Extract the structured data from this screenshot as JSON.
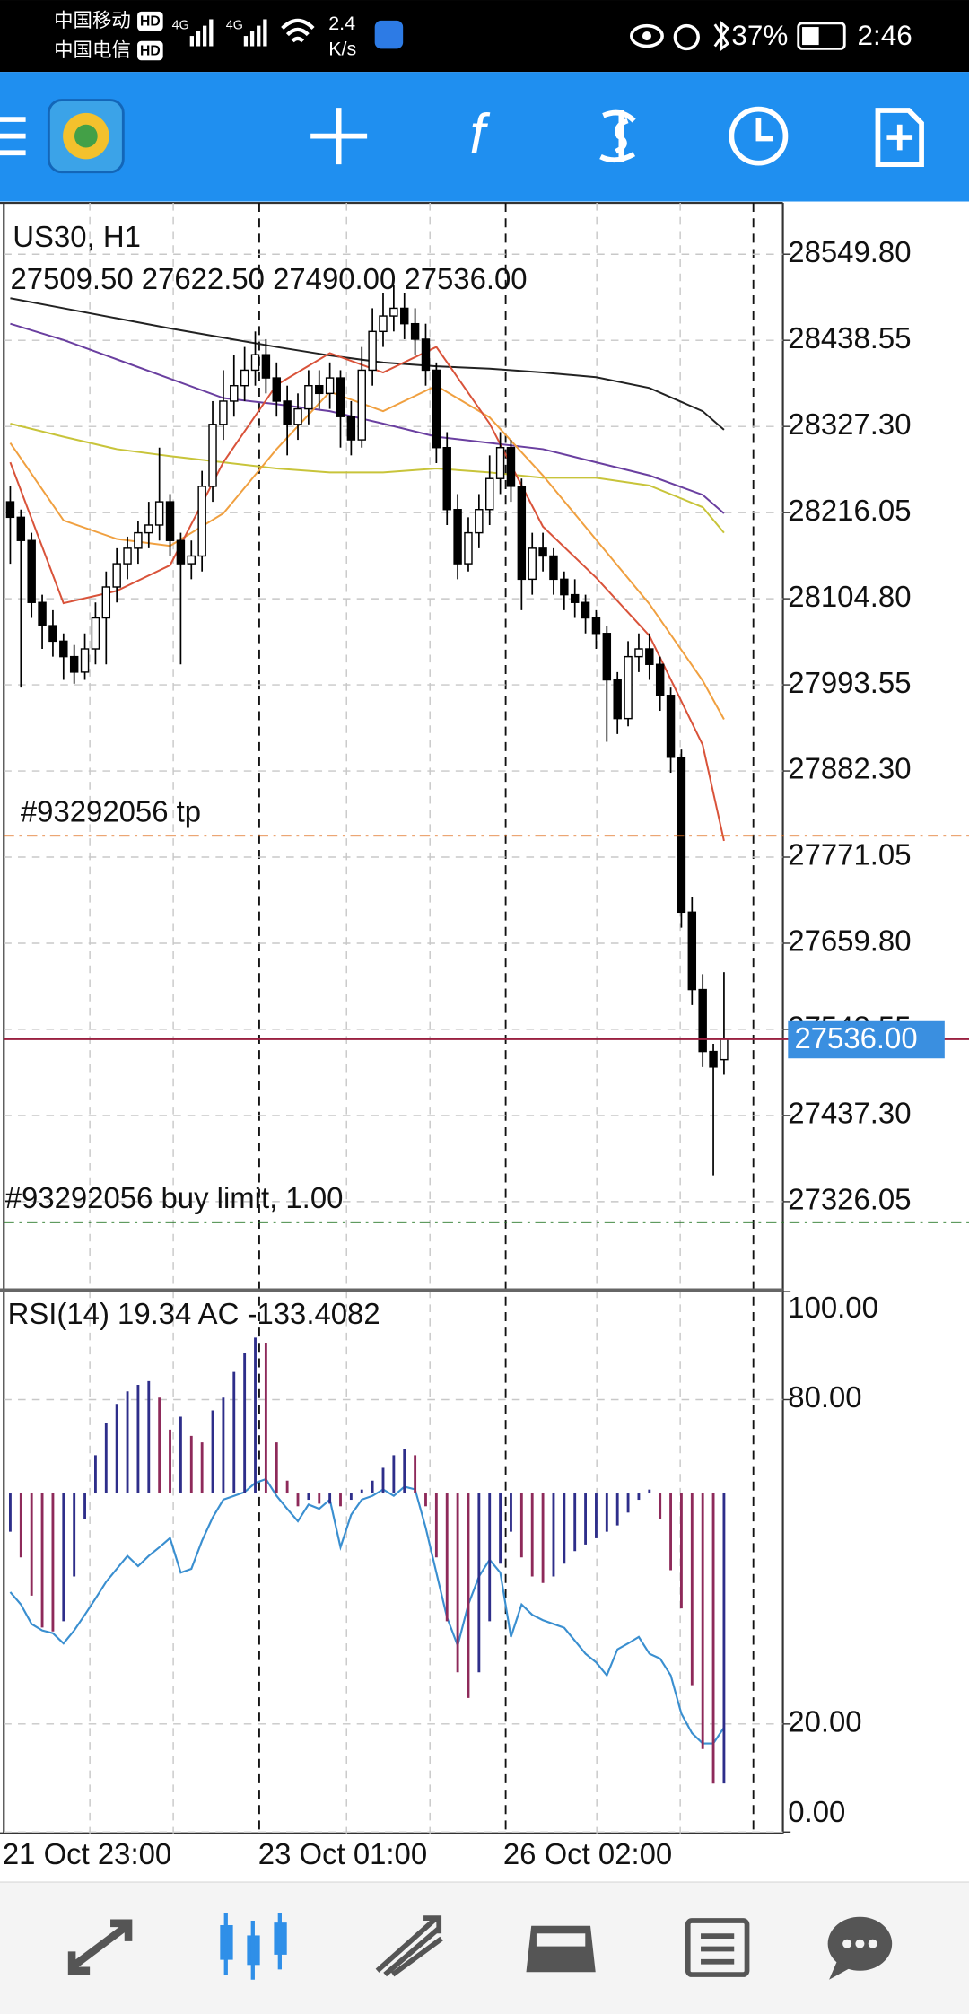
{
  "status_bar": {
    "carrier1": "中国移动",
    "carrier2": "中国电信",
    "hd": "HD",
    "net": "4G",
    "speed": "2.4",
    "speed_unit": "K/s",
    "battery": "37%",
    "time": "2:46"
  },
  "toolbar": {
    "indicators_icon": "f"
  },
  "chart_data": [
    {
      "type": "candlestick",
      "title": "US30, H1",
      "ohlc_text": "27509.50 27622.50 27490.00 27536.00",
      "candles": [
        [
          28230,
          28250,
          28150,
          28210
        ],
        [
          28210,
          28220,
          27990,
          28180
        ],
        [
          28180,
          28190,
          28080,
          28100
        ],
        [
          28100,
          28110,
          28040,
          28070
        ],
        [
          28070,
          28090,
          28030,
          28050
        ],
        [
          28050,
          28060,
          28000,
          28030
        ],
        [
          28030,
          28045,
          27995,
          28010
        ],
        [
          28010,
          28060,
          28000,
          28040
        ],
        [
          28040,
          28100,
          28020,
          28080
        ],
        [
          28080,
          28140,
          28020,
          28120
        ],
        [
          28120,
          28170,
          28100,
          28150
        ],
        [
          28150,
          28185,
          28130,
          28170
        ],
        [
          28170,
          28205,
          28150,
          28190
        ],
        [
          28190,
          28230,
          28170,
          28200
        ],
        [
          28200,
          28300,
          28180,
          28230
        ],
        [
          28230,
          28240,
          28160,
          28180
        ],
        [
          28180,
          28190,
          28020,
          28150
        ],
        [
          28150,
          28180,
          28130,
          28160
        ],
        [
          28160,
          28270,
          28140,
          28250
        ],
        [
          28250,
          28360,
          28230,
          28330
        ],
        [
          28330,
          28400,
          28310,
          28360
        ],
        [
          28360,
          28420,
          28340,
          28380
        ],
        [
          28380,
          28430,
          28360,
          28400
        ],
        [
          28400,
          28450,
          28380,
          28420
        ],
        [
          28420,
          28440,
          28370,
          28390
        ],
        [
          28390,
          28410,
          28340,
          28360
        ],
        [
          28360,
          28380,
          28290,
          28330
        ],
        [
          28330,
          28370,
          28310,
          28350
        ],
        [
          28350,
          28400,
          28330,
          28380
        ],
        [
          28380,
          28400,
          28350,
          28370
        ],
        [
          28370,
          28410,
          28350,
          28390
        ],
        [
          28390,
          28400,
          28300,
          28340
        ],
        [
          28340,
          28360,
          28290,
          28310
        ],
        [
          28310,
          28430,
          28300,
          28400
        ],
        [
          28400,
          28480,
          28380,
          28450
        ],
        [
          28450,
          28500,
          28430,
          28470
        ],
        [
          28470,
          28510,
          28450,
          28480
        ],
        [
          28480,
          28500,
          28440,
          28460
        ],
        [
          28460,
          28480,
          28420,
          28440
        ],
        [
          28440,
          28460,
          28380,
          28400
        ],
        [
          28400,
          28410,
          28280,
          28300
        ],
        [
          28300,
          28320,
          28200,
          28220
        ],
        [
          28220,
          28240,
          28130,
          28150
        ],
        [
          28150,
          28210,
          28140,
          28190
        ],
        [
          28190,
          28240,
          28170,
          28220
        ],
        [
          28220,
          28290,
          28200,
          28260
        ],
        [
          28260,
          28320,
          28240,
          28300
        ],
        [
          28300,
          28310,
          28230,
          28250
        ],
        [
          28250,
          28260,
          28090,
          28130
        ],
        [
          28130,
          28190,
          28110,
          28170
        ],
        [
          28170,
          28190,
          28140,
          28160
        ],
        [
          28160,
          28170,
          28110,
          28130
        ],
        [
          28130,
          28140,
          28090,
          28110
        ],
        [
          28110,
          28130,
          28080,
          28100
        ],
        [
          28100,
          28110,
          28060,
          28080
        ],
        [
          28080,
          28090,
          28040,
          28060
        ],
        [
          28060,
          28070,
          27920,
          28000
        ],
        [
          28000,
          28010,
          27930,
          27950
        ],
        [
          27950,
          28050,
          27940,
          28030
        ],
        [
          28030,
          28060,
          28010,
          28040
        ],
        [
          28040,
          28060,
          28000,
          28020
        ],
        [
          28020,
          28030,
          27960,
          27980
        ],
        [
          27980,
          27990,
          27880,
          27900
        ],
        [
          27900,
          27910,
          27680,
          27700
        ],
        [
          27700,
          27720,
          27580,
          27600
        ],
        [
          27600,
          27620,
          27500,
          27520
        ],
        [
          27520,
          27530,
          27360,
          27500
        ],
        [
          27509.5,
          27622.5,
          27490,
          27536
        ]
      ],
      "bull_color": "#ffffff",
      "bear_color": "#000000",
      "x": [
        0,
        5,
        10,
        15,
        20,
        25,
        30,
        35,
        40,
        45,
        50,
        55,
        60,
        65,
        67
      ],
      "series": [
        {
          "color": "#222222",
          "values": [
            28493,
            28480,
            28467,
            28454,
            28442,
            28430,
            28419,
            28410,
            28405,
            28402,
            28397,
            28391,
            28377,
            28347,
            28323
          ]
        },
        {
          "color": "#6a3fa0",
          "values": [
            28460,
            28439,
            28414,
            28389,
            28364,
            28356,
            28347,
            28331,
            28314,
            28306,
            28298,
            28281,
            28264,
            28239,
            28215
          ]
        },
        {
          "color": "#c8c43a",
          "values": [
            28331,
            28314,
            28298,
            28289,
            28281,
            28273,
            28268,
            28268,
            28273,
            28268,
            28261,
            28261,
            28251,
            28223,
            28190
          ]
        },
        {
          "color": "#f0a040",
          "values": [
            28306,
            28206,
            28182,
            28173,
            28215,
            28298,
            28372,
            28347,
            28380,
            28339,
            28264,
            28181,
            28098,
            27999,
            27949
          ]
        },
        {
          "color": "#d9533a",
          "values": [
            28281,
            28099,
            28115,
            28148,
            28281,
            28381,
            28422,
            28397,
            28430,
            28331,
            28198,
            28132,
            28057,
            27916,
            27792
          ]
        }
      ],
      "lines": [
        {
          "label": "#93292056 tp",
          "value": 27798.6,
          "color": "#e07020"
        },
        {
          "label": "#93292056 buy limit, 1.00",
          "value": 27299.5,
          "color": "#2a7a2a"
        }
      ],
      "bid": {
        "value": 27536,
        "label": "27536.00"
      },
      "ylim": [
        27211.6,
        28616.1
      ],
      "yticks": [
        {
          "value": 28549.8,
          "label": "28549.80"
        },
        {
          "value": 28438.55,
          "label": "28438.55"
        },
        {
          "value": 28327.3,
          "label": "28327.30"
        },
        {
          "value": 28216.05,
          "label": "28216.05"
        },
        {
          "value": 28104.8,
          "label": "28104.80"
        },
        {
          "value": 27993.55,
          "label": "27993.55"
        },
        {
          "value": 27882.3,
          "label": "27882.30"
        },
        {
          "value": 27771.05,
          "label": "27771.05"
        },
        {
          "value": 27659.8,
          "label": "27659.80"
        },
        {
          "value": 27548.55,
          "label": "27548.55"
        },
        {
          "value": 27437.3,
          "label": "27437.30"
        },
        {
          "value": 27326.05,
          "label": "27326.05"
        }
      ],
      "xticks": [
        {
          "value": 0,
          "label": "21 Oct 23:00"
        },
        {
          "value": 24,
          "label": "23 Oct 01:00"
        },
        {
          "value": 47,
          "label": "26 Oct 02:00"
        }
      ],
      "grid": true
    },
    {
      "type": "oscillator",
      "title": "RSI(14) 19.34 AC -133.4082",
      "series": [
        {
          "color": "#3a8fd0",
          "values": [
            44.4,
            42.1,
            38.5,
            37.3,
            36.8,
            34.9,
            37.3,
            40.2,
            43.2,
            46.3,
            48.7,
            51.1,
            49.2,
            51.1,
            52.7,
            54.4,
            48.0,
            48.7,
            53.9,
            58.2,
            61.5,
            62.2,
            62.9,
            64.6,
            65.3,
            62.2,
            59.8,
            57.5,
            60.6,
            59.8,
            61.5,
            52.7,
            58.7,
            61.5,
            62.2,
            63.4,
            62.2,
            63.9,
            63.4,
            56.3,
            48.0,
            39.7,
            34.5,
            42.1,
            47.3,
            50.4,
            48.0,
            36.1,
            42.1,
            40.2,
            39.2,
            38.5,
            37.8,
            35.4,
            33.0,
            31.4,
            29.0,
            33.8,
            34.9,
            36.1,
            33.0,
            32.1,
            29.0,
            21.9,
            18.3,
            16.4,
            16.4,
            19.34
          ]
        },
        {
          "type": "bar",
          "axis": "y2",
          "up_color": "#2e2e8a",
          "down_color": "#8e2a5a",
          "values": [
            -17.6,
            -29.4,
            -47,
            -61.7,
            -63.5,
            -58.8,
            -38.2,
            -11.8,
            17.6,
            32.3,
            41.2,
            47,
            50,
            51.7,
            44.1,
            29.4,
            35.3,
            26.5,
            23.5,
            38.2,
            44.1,
            55.9,
            64.7,
            71.7,
            69.4,
            23.5,
            5.9,
            -5.9,
            -2.9,
            -4.7,
            -4.7,
            -5.9,
            -2.9,
            1.8,
            5.9,
            11.8,
            17.6,
            20.6,
            17.6,
            -5.9,
            -29.4,
            -58.8,
            -82.3,
            -94.1,
            -82.3,
            -58.8,
            -32.3,
            -17.6,
            -29.4,
            -38.2,
            -41.2,
            -38.2,
            -32.3,
            -26.5,
            -23.5,
            -20.6,
            -17.6,
            -14.7,
            -8.8,
            -2.9,
            1.8,
            -11.8,
            -35.3,
            -52.9,
            -88.2,
            -117.6,
            -133.5,
            -133.4082
          ]
        }
      ],
      "ylim": [
        0,
        100
      ],
      "yticks": [
        {
          "value": 0,
          "label": "0.00"
        },
        {
          "value": 20,
          "label": "20.00"
        },
        {
          "value": 80,
          "label": "80.00"
        },
        {
          "value": 100,
          "label": "100.00"
        }
      ],
      "y2lim": [
        -155.8,
        92.9
      ],
      "grid": true
    }
  ]
}
